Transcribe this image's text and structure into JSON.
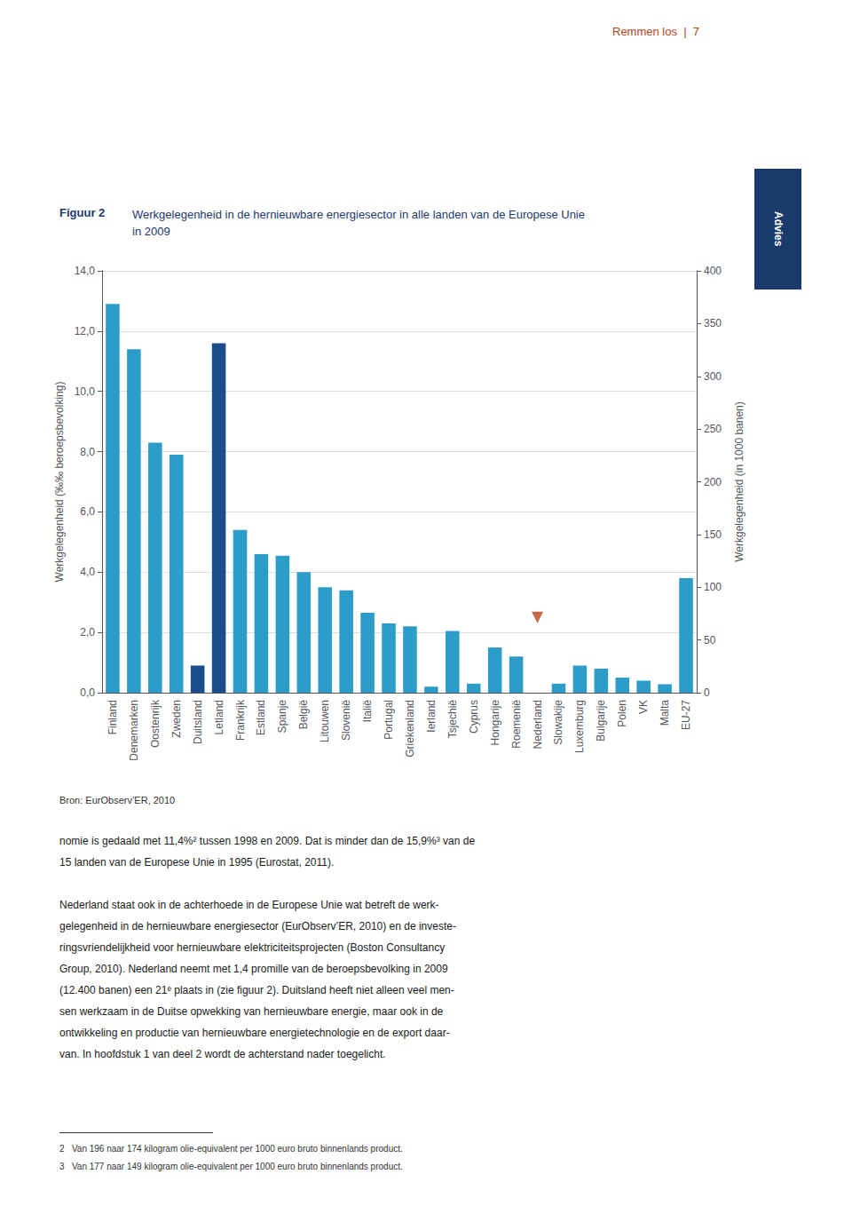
{
  "header": "Remmen los  |  7",
  "side_tab": "Advies",
  "title_label": "Figuur 2",
  "title_lines": [
    "Werkgelegenheid in de hernieuwbare energiesector in alle landen van de Europese Unie",
    "in 2009"
  ],
  "source": "Bron: EurObserv’ER, 2010",
  "body_text": [
    [
      "nomie is gedaald met 11,4%² tussen 1998 en 2009. Dat is minder dan de 15,9%³ van de",
      "15 landen van de Europese Unie in 1995 (Eurostat, 2011)."
    ],
    [
      "Nederland staat ook in de achterhoede in de Europese Unie wat betreft de werk-",
      "gelegenheid in de hernieuwbare energiesector (EurObserv’ER, 2010) en de investe-",
      "ringsvriendelijkheid voor hernieuwbare elektriciteitsprojecten (Boston Consultancy",
      "Group, 2010). Nederland neemt met 1,4 promille van de beroepsbevolking in 2009",
      "(12.400 banen) een 21ᵉ plaats in (zie figuur 2). Duitsland heeft niet alleen veel men-",
      "sen werkzaam in de Duitse opwekking van hernieuwbare energie, maar ook in de",
      "ontwikkeling en productie van hernieuwbare energietechnologie en de export daar-",
      "van. In hoofdstuk 1 van deel 2 wordt de achterstand nader toegelicht."
    ]
  ],
  "footnotes": [
    "2   Van 196 naar 174 kilogram olie-equivalent per 1000 euro bruto binnenlands product.",
    "3   Van 177 naar 149 kilogram olie-equivalent per 1000 euro bruto binnenlands product."
  ],
  "chart_data": {
    "type": "bar",
    "categories": [
      "Finland",
      "Denemarken",
      "Oostenrijk",
      "Zweden",
      "Duitsland",
      "Letland",
      "Frankrijk",
      "Estland",
      "Spanje",
      "België",
      "Litouwen",
      "Slovenië",
      "Italië",
      "Portugal",
      "Griekenland",
      "Ierland",
      "Tsjechië",
      "Cyprus",
      "Hongarije",
      "Roemenië",
      "Nederland",
      "Slowakije",
      "Luxemburg",
      "Bulgarije",
      "Polen",
      "VK",
      "Malta",
      "EU-27"
    ],
    "series": [
      {
        "type": "bar",
        "values": [
          12.9,
          11.4,
          8.3,
          7.9,
          0.9,
          11.6,
          5.4,
          4.6,
          4.55,
          4.0,
          3.5,
          3.4,
          2.65,
          2.3,
          2.2,
          0.2,
          2.05,
          0.3,
          1.5,
          1.2,
          null,
          0.3,
          0.9,
          0.8,
          0.5,
          0.4,
          0.28,
          3.8
        ],
        "colors": [
          "#2B9DC8",
          "#2B9DC8",
          "#2B9DC8",
          "#2B9DC8",
          "#1A4D8C",
          "#1A4D8C",
          "#2B9DC8",
          "#2B9DC8",
          "#2B9DC8",
          "#2B9DC8",
          "#2B9DC8",
          "#2B9DC8",
          "#2B9DC8",
          "#2B9DC8",
          "#2B9DC8",
          "#2B9DC8",
          "#2B9DC8",
          "#2B9DC8",
          "#2B9DC8",
          "#2B9DC8",
          null,
          "#2B9DC8",
          "#2B9DC8",
          "#2B9DC8",
          "#2B9DC8",
          "#2B9DC8",
          "#2B9DC8",
          "#2B9DC8"
        ]
      },
      {
        "type": "scatter",
        "marker": "triangle_down",
        "color": "#B5451B",
        "values": [
          null,
          null,
          null,
          null,
          null,
          null,
          null,
          null,
          null,
          null,
          null,
          null,
          null,
          null,
          null,
          null,
          null,
          null,
          null,
          null,
          2.5,
          null,
          null,
          null,
          null,
          null,
          null,
          null
        ]
      }
    ],
    "ylabel": "Werkgelegenheid (‰‰ beroepsbevolking)",
    "y2label": "Werkgelegenheid (in 1000 banen)",
    "ylim": [
      0,
      14.0
    ],
    "yticks": [
      {
        "value": 0.0,
        "label": "0,0"
      },
      {
        "value": 2.0,
        "label": "2,0"
      },
      {
        "value": 4.0,
        "label": "4,0"
      },
      {
        "value": 6.0,
        "label": "6,0"
      },
      {
        "value": 8.0,
        "label": "8,0"
      },
      {
        "value": 10.0,
        "label": "10,0"
      },
      {
        "value": 12.0,
        "label": "12,0"
      },
      {
        "value": 14.0,
        "label": "14,0"
      }
    ],
    "y2lim": [
      0,
      400
    ],
    "y2ticks": [
      0,
      50,
      100,
      150,
      200,
      250,
      300,
      350,
      400
    ],
    "grid": true
  }
}
